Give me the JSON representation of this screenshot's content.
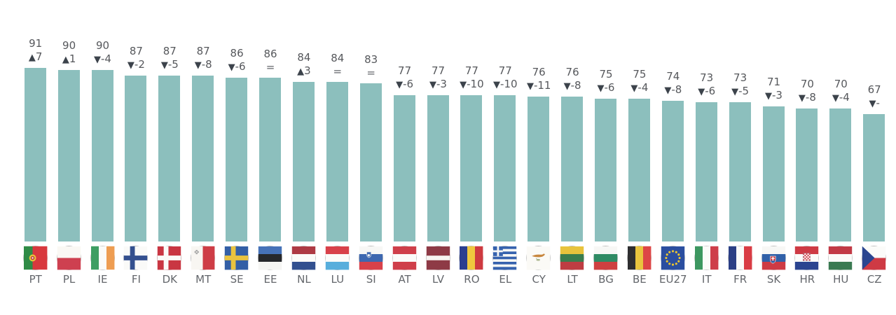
{
  "chart_data": {
    "type": "bar",
    "title": "",
    "ylim": [
      0,
      100
    ],
    "bar_color": "#8CBFBD",
    "legend": "none",
    "axes": "none (value labels printed above each bar, country flag and code below each bar)",
    "items": [
      {
        "code": "PT",
        "value": 91,
        "dir": "up",
        "delta": "7"
      },
      {
        "code": "PL",
        "value": 90,
        "dir": "up",
        "delta": "1"
      },
      {
        "code": "IE",
        "value": 90,
        "dir": "down",
        "delta": "-4"
      },
      {
        "code": "FI",
        "value": 87,
        "dir": "down",
        "delta": "-2"
      },
      {
        "code": "DK",
        "value": 87,
        "dir": "down",
        "delta": "-5"
      },
      {
        "code": "MT",
        "value": 87,
        "dir": "down",
        "delta": "-8"
      },
      {
        "code": "SE",
        "value": 86,
        "dir": "down",
        "delta": "-6"
      },
      {
        "code": "EE",
        "value": 86,
        "dir": "same",
        "delta": "="
      },
      {
        "code": "NL",
        "value": 84,
        "dir": "up",
        "delta": "3"
      },
      {
        "code": "LU",
        "value": 84,
        "dir": "same",
        "delta": "="
      },
      {
        "code": "SI",
        "value": 83,
        "dir": "same",
        "delta": "="
      },
      {
        "code": "AT",
        "value": 77,
        "dir": "down",
        "delta": "-6"
      },
      {
        "code": "LV",
        "value": 77,
        "dir": "down",
        "delta": "-3"
      },
      {
        "code": "RO",
        "value": 77,
        "dir": "down",
        "delta": "-10"
      },
      {
        "code": "EL",
        "value": 77,
        "dir": "down",
        "delta": "-10"
      },
      {
        "code": "CY",
        "value": 76,
        "dir": "down",
        "delta": "-11"
      },
      {
        "code": "LT",
        "value": 76,
        "dir": "down",
        "delta": "-8"
      },
      {
        "code": "BG",
        "value": 75,
        "dir": "down",
        "delta": "-6"
      },
      {
        "code": "BE",
        "value": 75,
        "dir": "down",
        "delta": "-4"
      },
      {
        "code": "EU27",
        "value": 74,
        "dir": "down",
        "delta": "-8"
      },
      {
        "code": "IT",
        "value": 73,
        "dir": "down",
        "delta": "-6"
      },
      {
        "code": "FR",
        "value": 73,
        "dir": "down",
        "delta": "-5"
      },
      {
        "code": "SK",
        "value": 71,
        "dir": "down",
        "delta": "-3"
      },
      {
        "code": "HR",
        "value": 70,
        "dir": "down",
        "delta": "-8"
      },
      {
        "code": "HU",
        "value": 70,
        "dir": "down",
        "delta": "-4"
      },
      {
        "code": "CZ",
        "value": 67,
        "dir": "down",
        "delta": "-",
        "clipped_at_right_edge": true
      }
    ]
  },
  "colors": {
    "bar": "#8CBFBD",
    "value_text": "#56585C",
    "triangle": "#3C434B",
    "country_code_text": "#63666B",
    "background": "#FFFFFF"
  },
  "flags": {
    "PT": {
      "o": "v",
      "s": [
        [
          "#2F8B46",
          0.38
        ],
        [
          "#D8383E",
          0.62
        ]
      ],
      "em": "pt"
    },
    "PL": {
      "o": "h",
      "s": [
        [
          "#FAF8F4",
          0.5
        ],
        [
          "#CE4050",
          0.5
        ]
      ]
    },
    "IE": {
      "o": "v",
      "s": [
        [
          "#3E9E63",
          0.3334
        ],
        [
          "#FBFBF9",
          0.3333
        ],
        [
          "#EE9D52",
          0.3333
        ]
      ]
    },
    "FI": {
      "o": "h",
      "s": [
        [
          "#FAFAF8",
          1
        ]
      ],
      "cross": "#34508F"
    },
    "DK": {
      "o": "h",
      "s": [
        [
          "#C93642",
          1
        ]
      ],
      "cross": "#FBFAF8"
    },
    "MT": {
      "o": "v",
      "s": [
        [
          "#F8F6F2",
          0.5
        ],
        [
          "#CE3D46",
          0.5
        ]
      ],
      "em": "mt"
    },
    "SE": {
      "o": "h",
      "s": [
        [
          "#335FA6",
          1
        ]
      ],
      "cross": "#E9C33F"
    },
    "EE": {
      "o": "h",
      "s": [
        [
          "#4672B8",
          0.3334
        ],
        [
          "#26282C",
          0.3333
        ],
        [
          "#F5F5F3",
          0.3333
        ]
      ]
    },
    "NL": {
      "o": "h",
      "s": [
        [
          "#AE3A44",
          0.3334
        ],
        [
          "#FBFBF9",
          0.3333
        ],
        [
          "#32508F",
          0.3333
        ]
      ]
    },
    "LU": {
      "o": "h",
      "s": [
        [
          "#D8414A",
          0.3334
        ],
        [
          "#FBFBF9",
          0.3333
        ],
        [
          "#58AEDC",
          0.3333
        ]
      ]
    },
    "SI": {
      "o": "h",
      "s": [
        [
          "#F7F7F5",
          0.3334
        ],
        [
          "#3E68B0",
          0.3333
        ],
        [
          "#D8414A",
          0.3333
        ]
      ],
      "em": "si"
    },
    "AT": {
      "o": "h",
      "s": [
        [
          "#CF3F4A",
          0.3334
        ],
        [
          "#FBFBF9",
          0.3333
        ],
        [
          "#CF3F4A",
          0.3333
        ]
      ]
    },
    "LV": {
      "o": "h",
      "s": [
        [
          "#8E3A46",
          0.4
        ],
        [
          "#F7F5F2",
          0.2
        ],
        [
          "#8E3A46",
          0.4
        ]
      ]
    },
    "RO": {
      "o": "v",
      "s": [
        [
          "#2B3F8F",
          0.3334
        ],
        [
          "#EFC83E",
          0.3333
        ],
        [
          "#CE3A40",
          0.3333
        ]
      ]
    },
    "EL": {
      "o": "h",
      "s": [
        [
          "#3662AE",
          0.1112
        ],
        [
          "#F7F7F5",
          0.1111
        ],
        [
          "#3662AE",
          0.1111
        ],
        [
          "#F7F7F5",
          0.1111
        ],
        [
          "#3662AE",
          0.1111
        ],
        [
          "#F7F7F5",
          0.1111
        ],
        [
          "#3662AE",
          0.1111
        ],
        [
          "#F7F7F5",
          0.1111
        ],
        [
          "#3662AE",
          0.1111
        ]
      ],
      "em": "el"
    },
    "CY": {
      "o": "h",
      "s": [
        [
          "#FBFAF6",
          1
        ]
      ],
      "em": "cy"
    },
    "LT": {
      "o": "h",
      "s": [
        [
          "#E8C33C",
          0.3334
        ],
        [
          "#3A7D4E",
          0.3333
        ],
        [
          "#BE3D42",
          0.3333
        ]
      ]
    },
    "BG": {
      "o": "h",
      "s": [
        [
          "#F7F7F5",
          0.3334
        ],
        [
          "#2E8B64",
          0.3333
        ],
        [
          "#CE4040",
          0.3333
        ]
      ]
    },
    "BE": {
      "o": "v",
      "s": [
        [
          "#2E2E30",
          0.3334
        ],
        [
          "#E9C53E",
          0.3333
        ],
        [
          "#DD4646",
          0.3333
        ]
      ]
    },
    "EU27": {
      "o": "h",
      "s": [
        [
          "#2B4EA0",
          1
        ]
      ],
      "em": "eu"
    },
    "IT": {
      "o": "v",
      "s": [
        [
          "#3D9760",
          0.3334
        ],
        [
          "#FBFBF9",
          0.3333
        ],
        [
          "#CE3E4A",
          0.3333
        ]
      ]
    },
    "FR": {
      "o": "v",
      "s": [
        [
          "#2B3F85",
          0.3334
        ],
        [
          "#FBFBF9",
          0.3333
        ],
        [
          "#D93C44",
          0.3333
        ]
      ]
    },
    "SK": {
      "o": "h",
      "s": [
        [
          "#F7F7F5",
          0.3334
        ],
        [
          "#3060A8",
          0.3333
        ],
        [
          "#CE3A44",
          0.3333
        ]
      ],
      "em": "sk"
    },
    "HR": {
      "o": "h",
      "s": [
        [
          "#CE3A44",
          0.3334
        ],
        [
          "#FBFBF9",
          0.3333
        ],
        [
          "#2B4490",
          0.3333
        ]
      ],
      "em": "hr"
    },
    "HU": {
      "o": "h",
      "s": [
        [
          "#C23A46",
          0.3334
        ],
        [
          "#FBFBF9",
          0.3333
        ],
        [
          "#3A7A52",
          0.3333
        ]
      ]
    },
    "CZ": {
      "o": "h",
      "s": [
        [
          "#FBFBF9",
          0.5
        ],
        [
          "#CE3A44",
          0.5
        ]
      ],
      "em": "cz"
    }
  }
}
